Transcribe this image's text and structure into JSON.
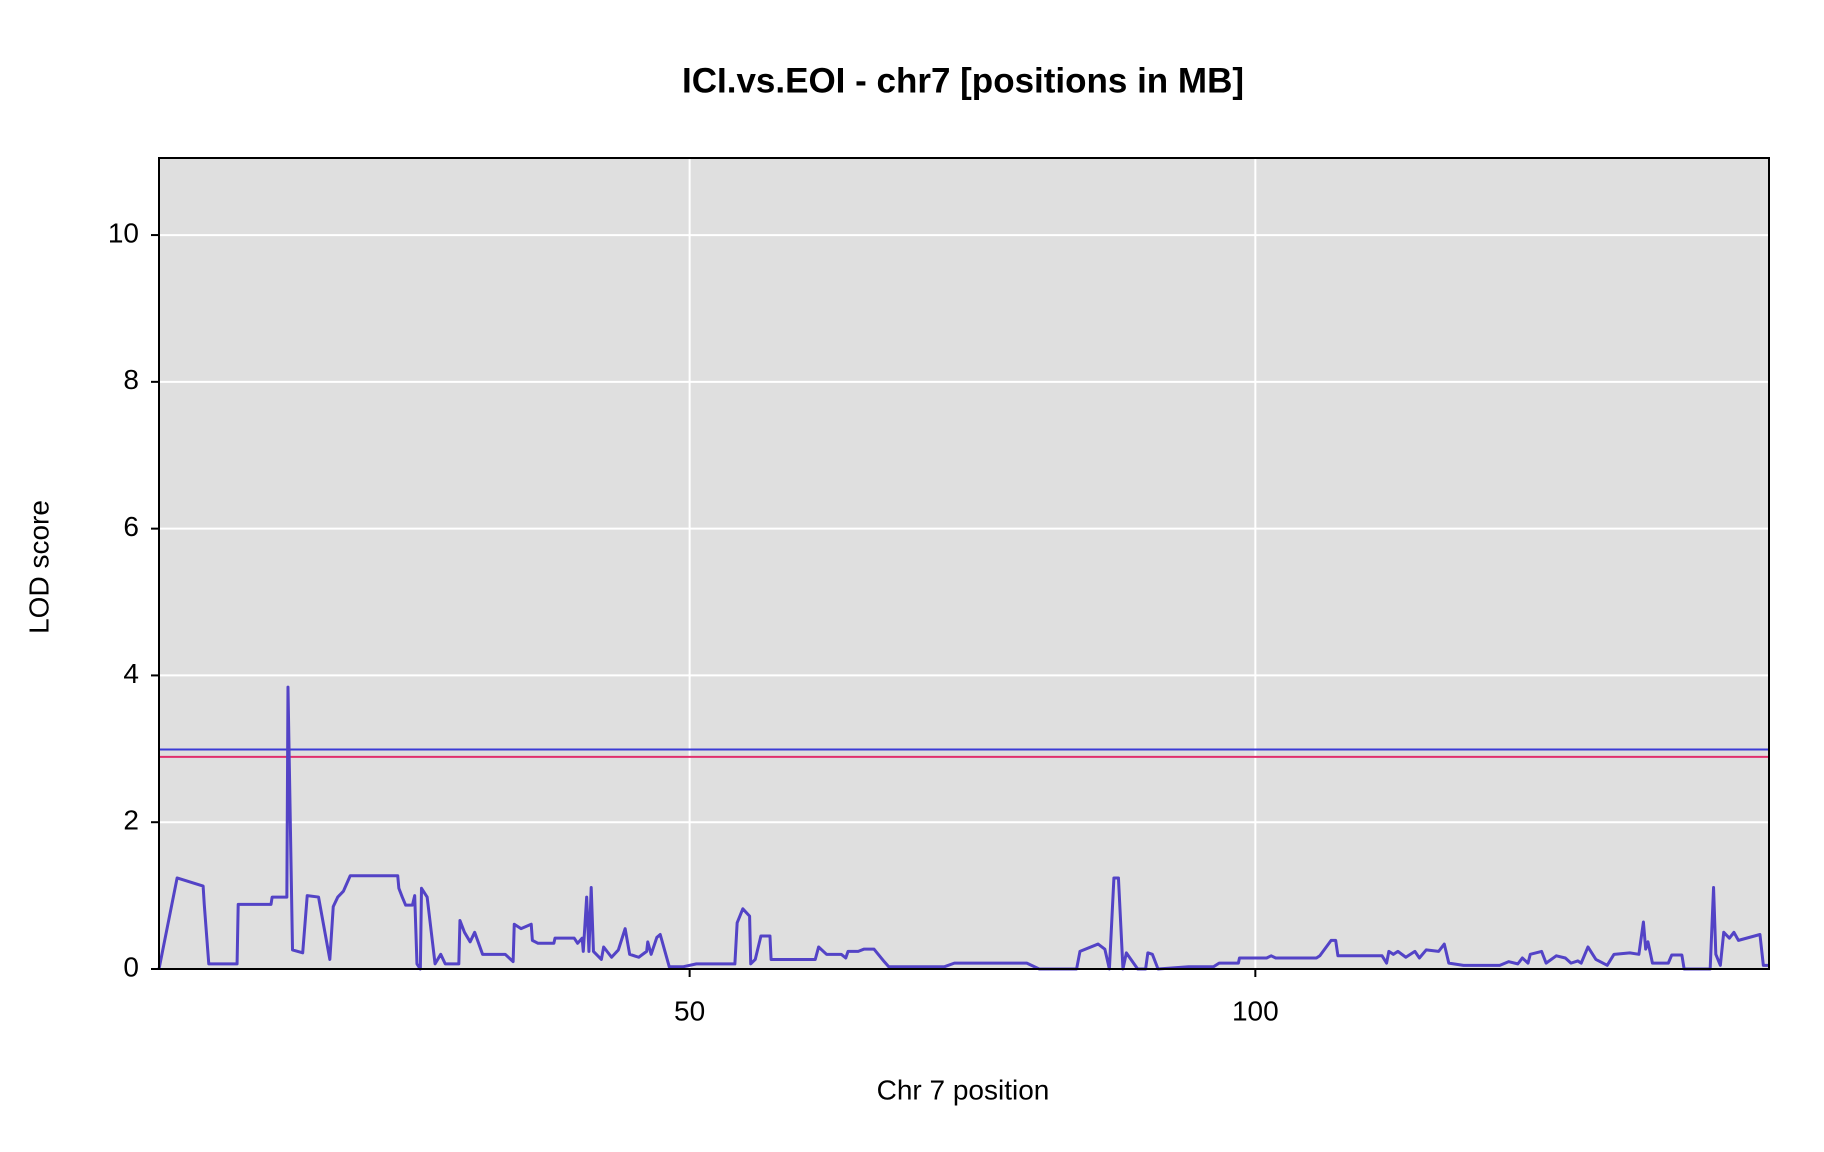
{
  "chart_data": {
    "type": "line",
    "title": "ICI.vs.EOI - chr7 [positions in MB]",
    "xlabel": "Chr 7 position",
    "ylabel": "LOD score",
    "xlim": [
      3.1,
      145.4
    ],
    "xticks": [
      50,
      100
    ],
    "ylim": [
      0,
      11.05
    ],
    "yticks": [
      0,
      2,
      4,
      6,
      8,
      10
    ],
    "grid": true,
    "color": "#5343c6",
    "thresholds": [
      {
        "value": 2.99,
        "color": "#3b3bd6"
      },
      {
        "value": 2.89,
        "color": "#e0306e"
      }
    ],
    "x": [
      3.1,
      4.7,
      7.0,
      7.1,
      7.5,
      10.0,
      10.1,
      13.0,
      13.1,
      14.4,
      14.5,
      14.9,
      15.8,
      16.2,
      17.2,
      18.2,
      18.5,
      18.9,
      19.4,
      20.0,
      24.2,
      24.3,
      24.6,
      24.9,
      25.5,
      25.7,
      25.9,
      26.2,
      26.3,
      26.8,
      27.5,
      28.0,
      28.4,
      29.6,
      29.7,
      30.1,
      30.6,
      31.0,
      31.7,
      33.7,
      34.4,
      34.5,
      35.1,
      36.0,
      36.1,
      36.6,
      38.0,
      38.1,
      39.8,
      40.1,
      40.5,
      40.6,
      40.9,
      41.1,
      41.3,
      41.5,
      42.2,
      42.4,
      43.1,
      43.7,
      44.3,
      44.7,
      45.5,
      46.2,
      46.3,
      46.6,
      47.1,
      47.4,
      48.2,
      49.4,
      50.6,
      54.0,
      54.2,
      54.7,
      55.3,
      55.4,
      55.8,
      56.3,
      57.1,
      57.2,
      61.1,
      61.4,
      62.1,
      63.4,
      63.8,
      64.0,
      64.9,
      65.4,
      66.3,
      67.2,
      67.6,
      72.5,
      73.4,
      79.8,
      80.9,
      84.2,
      84.5,
      86.1,
      86.7,
      87.1,
      87.5,
      87.9,
      88.3,
      88.6,
      89.6,
      90.3,
      90.5,
      90.9,
      91.4,
      94.1,
      96.3,
      96.8,
      98.5,
      98.6,
      101.0,
      101.4,
      101.8,
      105.4,
      105.7,
      106.7,
      107.1,
      107.3,
      111.2,
      111.6,
      111.8,
      112.2,
      112.6,
      113.3,
      114.1,
      114.5,
      115.1,
      116.2,
      116.7,
      117.1,
      118.4,
      121.6,
      122.4,
      123.2,
      123.6,
      124.1,
      124.3,
      125.3,
      125.7,
      126.6,
      127.4,
      127.9,
      128.5,
      128.8,
      129.4,
      130.1,
      131.1,
      131.7,
      133.1,
      133.9,
      134.3,
      134.5,
      134.7,
      135.1,
      136.5,
      136.8,
      137.7,
      137.9,
      140.2,
      140.5,
      140.7,
      141.1,
      141.4,
      141.9,
      142.3,
      142.7,
      144.6,
      144.9,
      145.4
    ],
    "values": [
      0,
      1.24,
      1.13,
      0.88,
      0.07,
      0.07,
      0.88,
      0.88,
      0.98,
      0.98,
      3.84,
      0.26,
      0.22,
      1.0,
      0.98,
      0.13,
      0.85,
      0.98,
      1.06,
      1.27,
      1.27,
      1.1,
      0.98,
      0.87,
      0.87,
      1.0,
      0.07,
      0,
      1.1,
      0.98,
      0.07,
      0.2,
      0.07,
      0.07,
      0.66,
      0.5,
      0.37,
      0.5,
      0.2,
      0.2,
      0.1,
      0.61,
      0.55,
      0.61,
      0.39,
      0.35,
      0.35,
      0.42,
      0.42,
      0.35,
      0.42,
      0.24,
      0.98,
      0.24,
      1.11,
      0.24,
      0.13,
      0.3,
      0.16,
      0.26,
      0.55,
      0.2,
      0.16,
      0.24,
      0.37,
      0.2,
      0.43,
      0.47,
      0.03,
      0.03,
      0.07,
      0.07,
      0.63,
      0.82,
      0.72,
      0.07,
      0.13,
      0.45,
      0.45,
      0.13,
      0.13,
      0.3,
      0.2,
      0.2,
      0.15,
      0.24,
      0.24,
      0.27,
      0.27,
      0.1,
      0.03,
      0.03,
      0.08,
      0.08,
      0,
      0,
      0.24,
      0.34,
      0.27,
      0,
      1.24,
      1.24,
      0,
      0.22,
      0,
      0,
      0.22,
      0.2,
      0,
      0.03,
      0.03,
      0.08,
      0.08,
      0.15,
      0.15,
      0.18,
      0.15,
      0.15,
      0.18,
      0.39,
      0.39,
      0.18,
      0.18,
      0.08,
      0.24,
      0.2,
      0.24,
      0.16,
      0.24,
      0.15,
      0.26,
      0.24,
      0.34,
      0.08,
      0.05,
      0.05,
      0.1,
      0.07,
      0.15,
      0.08,
      0.2,
      0.24,
      0.08,
      0.18,
      0.15,
      0.08,
      0.11,
      0.08,
      0.3,
      0.13,
      0.05,
      0.2,
      0.22,
      0.2,
      0.64,
      0.27,
      0.37,
      0.08,
      0.08,
      0.19,
      0.19,
      0,
      0,
      1.11,
      0.2,
      0.05,
      0.5,
      0.42,
      0.5,
      0.39,
      0.47,
      0.05,
      0.05
    ]
  }
}
